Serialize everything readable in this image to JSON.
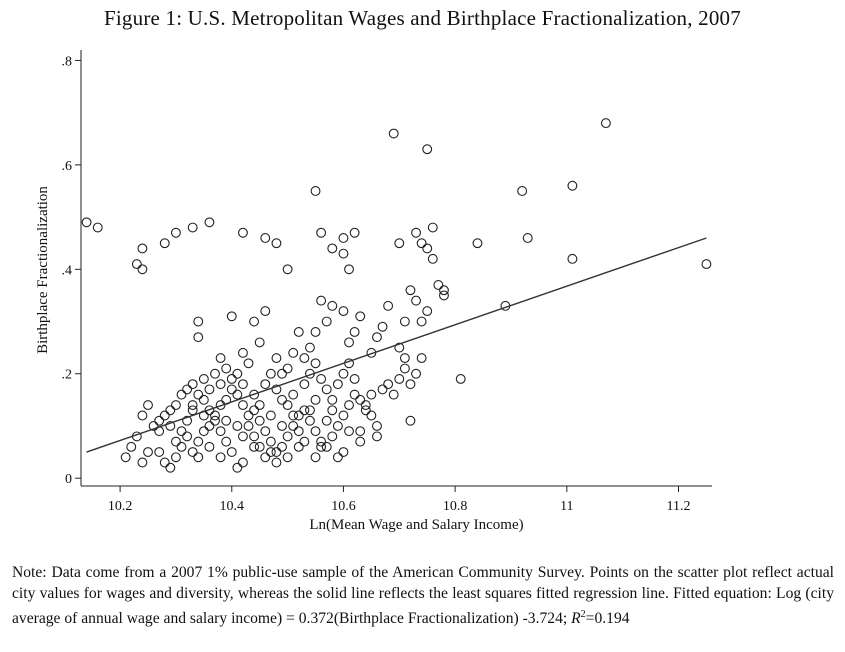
{
  "figure": {
    "title": "Figure 1: U.S. Metropolitan Wages and Birthplace Fractionalization, 2007"
  },
  "note": {
    "text": "Note: Data come from a 2007 1% public-use sample of the American Community Survey. Points on the scatter plot reflect actual city values for wages and diversity, whereas the solid line reflects the least squares fitted regression line. Fitted equation: Log (city average of annual wage and salary income) = 0.372(Birthplace Fractionalization) -3.724; ",
    "r2_symbol": "R",
    "r2_power": "2",
    "r2_value": "=0.194"
  },
  "chart_data": {
    "type": "scatter",
    "title": "Figure 1: U.S. Metropolitan Wages and Birthplace Fractionalization, 2007",
    "xlabel": "Ln(Mean Wage and Salary Income)",
    "ylabel": "Birthplace Fractionalization",
    "xlim": [
      10.13,
      11.26
    ],
    "ylim": [
      -0.015,
      0.82
    ],
    "xticks": [
      10.2,
      10.4,
      10.6,
      10.8,
      11,
      11.2
    ],
    "xtick_labels": [
      "10.2",
      "10.4",
      "10.6",
      "10.8",
      "11",
      "11.2"
    ],
    "yticks": [
      0,
      0.2,
      0.4,
      0.6,
      0.8
    ],
    "ytick_labels": [
      "0",
      ".2",
      ".4",
      ".6",
      ".8"
    ],
    "marker": "hollow-circle",
    "fit_line": {
      "x": [
        10.14,
        11.25
      ],
      "y": [
        0.05,
        0.46
      ]
    },
    "points": [
      [
        10.14,
        0.49
      ],
      [
        10.16,
        0.48
      ],
      [
        10.23,
        0.41
      ],
      [
        10.24,
        0.4
      ],
      [
        10.24,
        0.44
      ],
      [
        10.28,
        0.45
      ],
      [
        10.3,
        0.47
      ],
      [
        10.33,
        0.48
      ],
      [
        10.36,
        0.49
      ],
      [
        10.42,
        0.47
      ],
      [
        10.46,
        0.46
      ],
      [
        10.48,
        0.45
      ],
      [
        10.5,
        0.4
      ],
      [
        10.55,
        0.55
      ],
      [
        10.56,
        0.47
      ],
      [
        10.58,
        0.44
      ],
      [
        10.6,
        0.46
      ],
      [
        10.6,
        0.43
      ],
      [
        10.61,
        0.4
      ],
      [
        10.62,
        0.47
      ],
      [
        10.69,
        0.66
      ],
      [
        10.7,
        0.45
      ],
      [
        10.73,
        0.47
      ],
      [
        10.74,
        0.45
      ],
      [
        10.75,
        0.63
      ],
      [
        10.75,
        0.44
      ],
      [
        10.76,
        0.42
      ],
      [
        10.76,
        0.48
      ],
      [
        10.84,
        0.45
      ],
      [
        10.92,
        0.55
      ],
      [
        10.93,
        0.46
      ],
      [
        11.01,
        0.56
      ],
      [
        11.01,
        0.42
      ],
      [
        11.07,
        0.68
      ],
      [
        11.25,
        0.41
      ],
      [
        10.89,
        0.33
      ],
      [
        10.81,
        0.19
      ],
      [
        10.78,
        0.35
      ],
      [
        10.78,
        0.36
      ],
      [
        10.77,
        0.37
      ],
      [
        10.75,
        0.32
      ],
      [
        10.74,
        0.3
      ],
      [
        10.73,
        0.34
      ],
      [
        10.72,
        0.36
      ],
      [
        10.71,
        0.3
      ],
      [
        10.7,
        0.25
      ],
      [
        10.71,
        0.23
      ],
      [
        10.68,
        0.33
      ],
      [
        10.67,
        0.29
      ],
      [
        10.66,
        0.27
      ],
      [
        10.65,
        0.24
      ],
      [
        10.63,
        0.31
      ],
      [
        10.62,
        0.28
      ],
      [
        10.61,
        0.26
      ],
      [
        10.6,
        0.32
      ],
      [
        10.58,
        0.33
      ],
      [
        10.57,
        0.3
      ],
      [
        10.56,
        0.34
      ],
      [
        10.55,
        0.28
      ],
      [
        10.54,
        0.25
      ],
      [
        10.53,
        0.23
      ],
      [
        10.52,
        0.28
      ],
      [
        10.51,
        0.24
      ],
      [
        10.5,
        0.21
      ],
      [
        10.49,
        0.2
      ],
      [
        10.48,
        0.23
      ],
      [
        10.46,
        0.32
      ],
      [
        10.45,
        0.26
      ],
      [
        10.44,
        0.3
      ],
      [
        10.43,
        0.22
      ],
      [
        10.42,
        0.24
      ],
      [
        10.4,
        0.31
      ],
      [
        10.39,
        0.21
      ],
      [
        10.38,
        0.23
      ],
      [
        10.37,
        0.2
      ],
      [
        10.35,
        0.19
      ],
      [
        10.34,
        0.3
      ],
      [
        10.34,
        0.27
      ],
      [
        10.33,
        0.18
      ],
      [
        10.32,
        0.17
      ],
      [
        10.31,
        0.16
      ],
      [
        10.3,
        0.14
      ],
      [
        10.29,
        0.13
      ],
      [
        10.28,
        0.12
      ],
      [
        10.27,
        0.11
      ],
      [
        10.26,
        0.1
      ],
      [
        10.25,
        0.14
      ],
      [
        10.24,
        0.12
      ],
      [
        10.23,
        0.08
      ],
      [
        10.22,
        0.06
      ],
      [
        10.21,
        0.04
      ],
      [
        10.24,
        0.03
      ],
      [
        10.25,
        0.05
      ],
      [
        10.27,
        0.05
      ],
      [
        10.28,
        0.03
      ],
      [
        10.29,
        0.02
      ],
      [
        10.3,
        0.04
      ],
      [
        10.31,
        0.06
      ],
      [
        10.32,
        0.08
      ],
      [
        10.33,
        0.05
      ],
      [
        10.34,
        0.07
      ],
      [
        10.35,
        0.09
      ],
      [
        10.36,
        0.1
      ],
      [
        10.37,
        0.12
      ],
      [
        10.38,
        0.14
      ],
      [
        10.39,
        0.15
      ],
      [
        10.4,
        0.17
      ],
      [
        10.41,
        0.16
      ],
      [
        10.42,
        0.14
      ],
      [
        10.43,
        0.12
      ],
      [
        10.44,
        0.13
      ],
      [
        10.45,
        0.11
      ],
      [
        10.46,
        0.09
      ],
      [
        10.47,
        0.07
      ],
      [
        10.48,
        0.05
      ],
      [
        10.49,
        0.06
      ],
      [
        10.5,
        0.08
      ],
      [
        10.51,
        0.1
      ],
      [
        10.52,
        0.12
      ],
      [
        10.53,
        0.13
      ],
      [
        10.54,
        0.11
      ],
      [
        10.55,
        0.09
      ],
      [
        10.56,
        0.07
      ],
      [
        10.57,
        0.06
      ],
      [
        10.58,
        0.08
      ],
      [
        10.59,
        0.1
      ],
      [
        10.6,
        0.12
      ],
      [
        10.61,
        0.14
      ],
      [
        10.62,
        0.16
      ],
      [
        10.63,
        0.15
      ],
      [
        10.64,
        0.13
      ],
      [
        10.65,
        0.12
      ],
      [
        10.66,
        0.1
      ],
      [
        10.67,
        0.17
      ],
      [
        10.68,
        0.18
      ],
      [
        10.69,
        0.16
      ],
      [
        10.7,
        0.19
      ],
      [
        10.71,
        0.21
      ],
      [
        10.72,
        0.18
      ],
      [
        10.73,
        0.2
      ],
      [
        10.74,
        0.23
      ],
      [
        10.72,
        0.11
      ],
      [
        10.66,
        0.08
      ],
      [
        10.63,
        0.09
      ],
      [
        10.6,
        0.05
      ],
      [
        10.59,
        0.04
      ],
      [
        10.56,
        0.06
      ],
      [
        10.53,
        0.07
      ],
      [
        10.52,
        0.09
      ],
      [
        10.5,
        0.04
      ],
      [
        10.48,
        0.03
      ],
      [
        10.47,
        0.05
      ],
      [
        10.45,
        0.06
      ],
      [
        10.44,
        0.08
      ],
      [
        10.43,
        0.1
      ],
      [
        10.42,
        0.03
      ],
      [
        10.41,
        0.02
      ],
      [
        10.4,
        0.05
      ],
      [
        10.39,
        0.07
      ],
      [
        10.38,
        0.09
      ],
      [
        10.37,
        0.11
      ],
      [
        10.36,
        0.13
      ],
      [
        10.35,
        0.15
      ],
      [
        10.34,
        0.16
      ],
      [
        10.33,
        0.13
      ],
      [
        10.32,
        0.11
      ],
      [
        10.31,
        0.09
      ],
      [
        10.3,
        0.07
      ],
      [
        10.36,
        0.17
      ],
      [
        10.38,
        0.18
      ],
      [
        10.4,
        0.19
      ],
      [
        10.41,
        0.2
      ],
      [
        10.42,
        0.18
      ],
      [
        10.44,
        0.16
      ],
      [
        10.46,
        0.18
      ],
      [
        10.47,
        0.2
      ],
      [
        10.48,
        0.17
      ],
      [
        10.49,
        0.15
      ],
      [
        10.5,
        0.14
      ],
      [
        10.51,
        0.16
      ],
      [
        10.53,
        0.18
      ],
      [
        10.54,
        0.2
      ],
      [
        10.55,
        0.22
      ],
      [
        10.56,
        0.19
      ],
      [
        10.57,
        0.17
      ],
      [
        10.58,
        0.15
      ],
      [
        10.59,
        0.18
      ],
      [
        10.6,
        0.2
      ],
      [
        10.61,
        0.22
      ],
      [
        10.62,
        0.19
      ],
      [
        10.64,
        0.14
      ],
      [
        10.65,
        0.16
      ],
      [
        10.41,
        0.1
      ],
      [
        10.42,
        0.08
      ],
      [
        10.44,
        0.06
      ],
      [
        10.46,
        0.04
      ],
      [
        10.49,
        0.1
      ],
      [
        10.51,
        0.12
      ],
      [
        10.54,
        0.13
      ],
      [
        10.55,
        0.15
      ],
      [
        10.57,
        0.11
      ],
      [
        10.58,
        0.13
      ],
      [
        10.61,
        0.09
      ],
      [
        10.63,
        0.07
      ],
      [
        10.38,
        0.04
      ],
      [
        10.36,
        0.06
      ],
      [
        10.34,
        0.04
      ],
      [
        10.39,
        0.11
      ],
      [
        10.45,
        0.14
      ],
      [
        10.47,
        0.12
      ],
      [
        10.52,
        0.06
      ],
      [
        10.55,
        0.04
      ],
      [
        10.27,
        0.09
      ],
      [
        10.29,
        0.1
      ],
      [
        10.33,
        0.14
      ],
      [
        10.35,
        0.12
      ]
    ]
  }
}
